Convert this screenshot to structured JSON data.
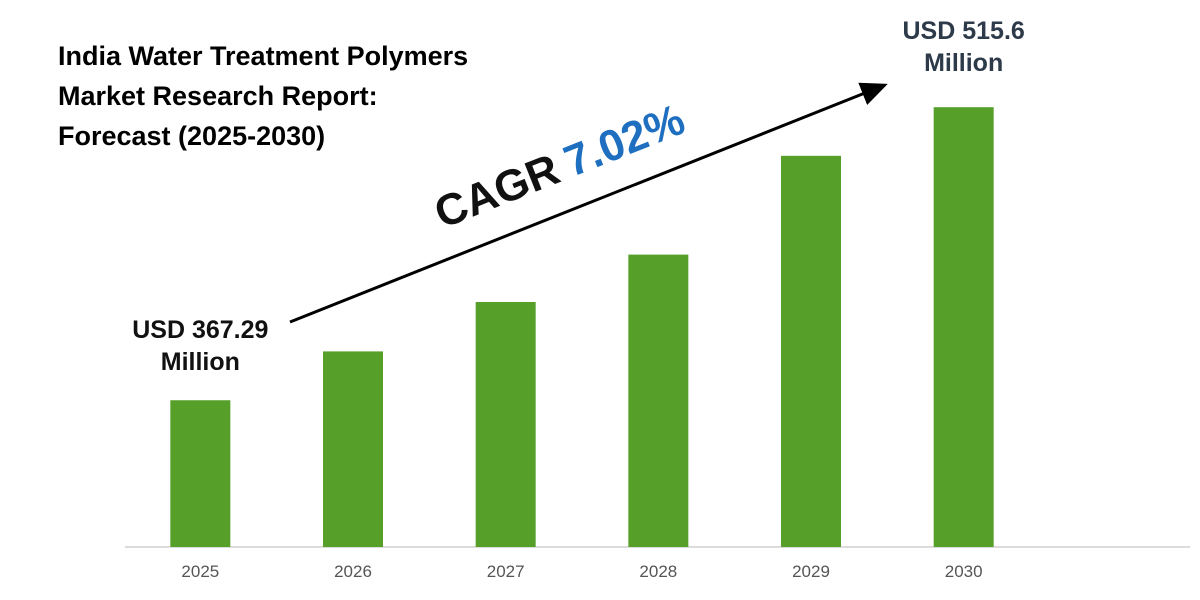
{
  "chart_data": {
    "type": "bar",
    "title": "India Water Treatment Polymers Market Research Report: Forecast (2025-2030)",
    "categories": [
      "2025",
      "2026",
      "2027",
      "2028",
      "2029",
      "2030"
    ],
    "values": [
      367.29,
      392,
      417,
      441,
      491,
      515.6
    ],
    "value_labels": [
      "USD 367.29 Million",
      null,
      null,
      null,
      null,
      "USD 515.6 Million"
    ],
    "annotations": [
      "CAGR",
      "7.02%"
    ],
    "color": "#56a02a",
    "ylim": [
      293,
      540
    ]
  }
}
